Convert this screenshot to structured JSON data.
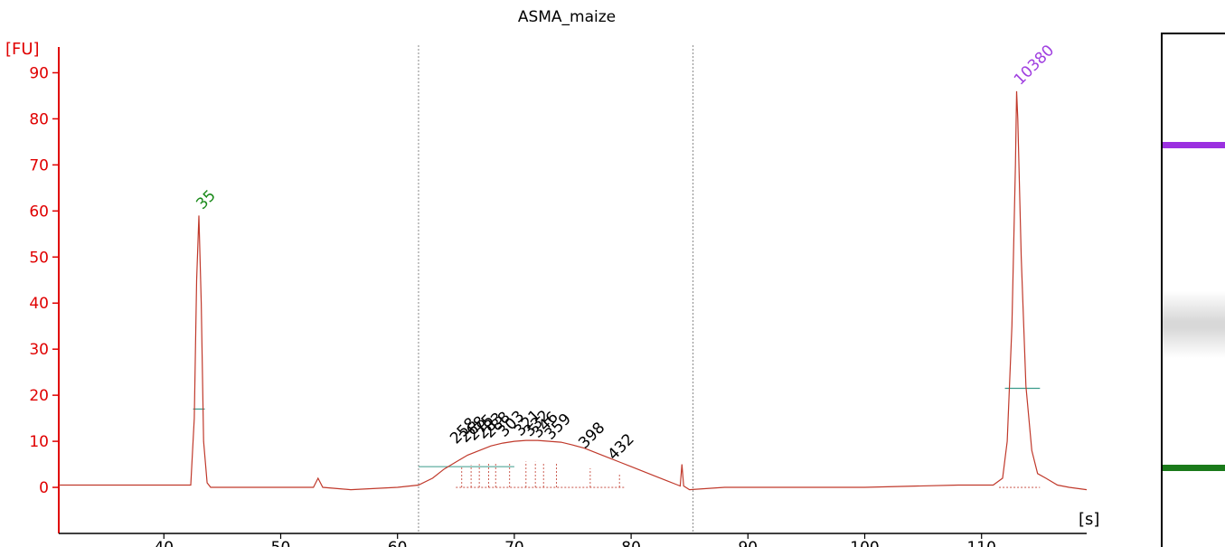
{
  "chart_data": {
    "type": "line",
    "title": "ASMA_maize",
    "ylabel": "[FU]",
    "xlabel": "[s]",
    "xlim": [
      31,
      119
    ],
    "ylim": [
      -10,
      95
    ],
    "x_ticks": [
      40,
      50,
      60,
      70,
      80,
      90,
      100,
      110
    ],
    "y_ticks": [
      0,
      10,
      20,
      30,
      40,
      50,
      60,
      70,
      80,
      90
    ],
    "region_markers_x": [
      61.8,
      85.3
    ],
    "peaks": [
      {
        "label": "35",
        "x": 43.0,
        "height": 59,
        "color": "#1a8a1a"
      },
      {
        "label": "10380",
        "x": 113.0,
        "height": 86,
        "color": "#a040e0"
      }
    ],
    "fragment_labels": [
      {
        "label": "258",
        "x": 65.5,
        "y": 8.5
      },
      {
        "label": "268",
        "x": 66.3,
        "y": 8.8
      },
      {
        "label": "275",
        "x": 67.0,
        "y": 9.2
      },
      {
        "label": "283",
        "x": 67.8,
        "y": 9.6
      },
      {
        "label": "288",
        "x": 68.4,
        "y": 9.8
      },
      {
        "label": "303",
        "x": 69.6,
        "y": 10.0
      },
      {
        "label": "321",
        "x": 71.0,
        "y": 10.2
      },
      {
        "label": "332",
        "x": 71.8,
        "y": 10.1
      },
      {
        "label": "346",
        "x": 72.5,
        "y": 9.8
      },
      {
        "label": "359",
        "x": 73.6,
        "y": 9.4
      },
      {
        "label": "398",
        "x": 76.5,
        "y": 7.5
      },
      {
        "label": "432",
        "x": 79.0,
        "y": 5.0
      }
    ],
    "series": [
      {
        "color": "#c0392b",
        "x": [
          31,
          40,
          42.3,
          42.6,
          42.8,
          43.0,
          43.2,
          43.4,
          43.7,
          44.0,
          46,
          50,
          52.8,
          53.2,
          53.6,
          56,
          60,
          61.8,
          63,
          64,
          65,
          66,
          67,
          68,
          69,
          70,
          71,
          72,
          73,
          74,
          75,
          76,
          77,
          78,
          79,
          80,
          81,
          82,
          83,
          84,
          84.2,
          84.35,
          84.5,
          85,
          88,
          95,
          100,
          108,
          111,
          111.8,
          112.2,
          112.6,
          112.9,
          113.0,
          113.1,
          113.4,
          113.8,
          114.3,
          114.8,
          115.5,
          116.5,
          117.5,
          119
        ],
        "y": [
          0.5,
          0.5,
          0.5,
          15,
          45,
          59,
          40,
          10,
          1,
          0,
          0,
          0,
          0,
          2,
          0,
          -0.5,
          0,
          0.5,
          2,
          4,
          5.5,
          7,
          8,
          9,
          9.6,
          10,
          10.2,
          10.2,
          10,
          9.8,
          9.2,
          8.5,
          7.5,
          6.5,
          5.5,
          4.5,
          3.5,
          2.5,
          1.5,
          0.5,
          0.3,
          5,
          0.3,
          -0.5,
          0,
          0,
          0,
          0.5,
          0.5,
          2,
          10,
          35,
          70,
          86,
          80,
          50,
          22,
          8,
          3,
          2,
          0.5,
          0,
          -0.5
        ]
      }
    ],
    "legend": []
  },
  "gel": {
    "bands": [
      {
        "pos": 0.21,
        "color": "#9b30e0"
      },
      {
        "pos": 0.84,
        "color": "#1a7a1a"
      }
    ]
  }
}
